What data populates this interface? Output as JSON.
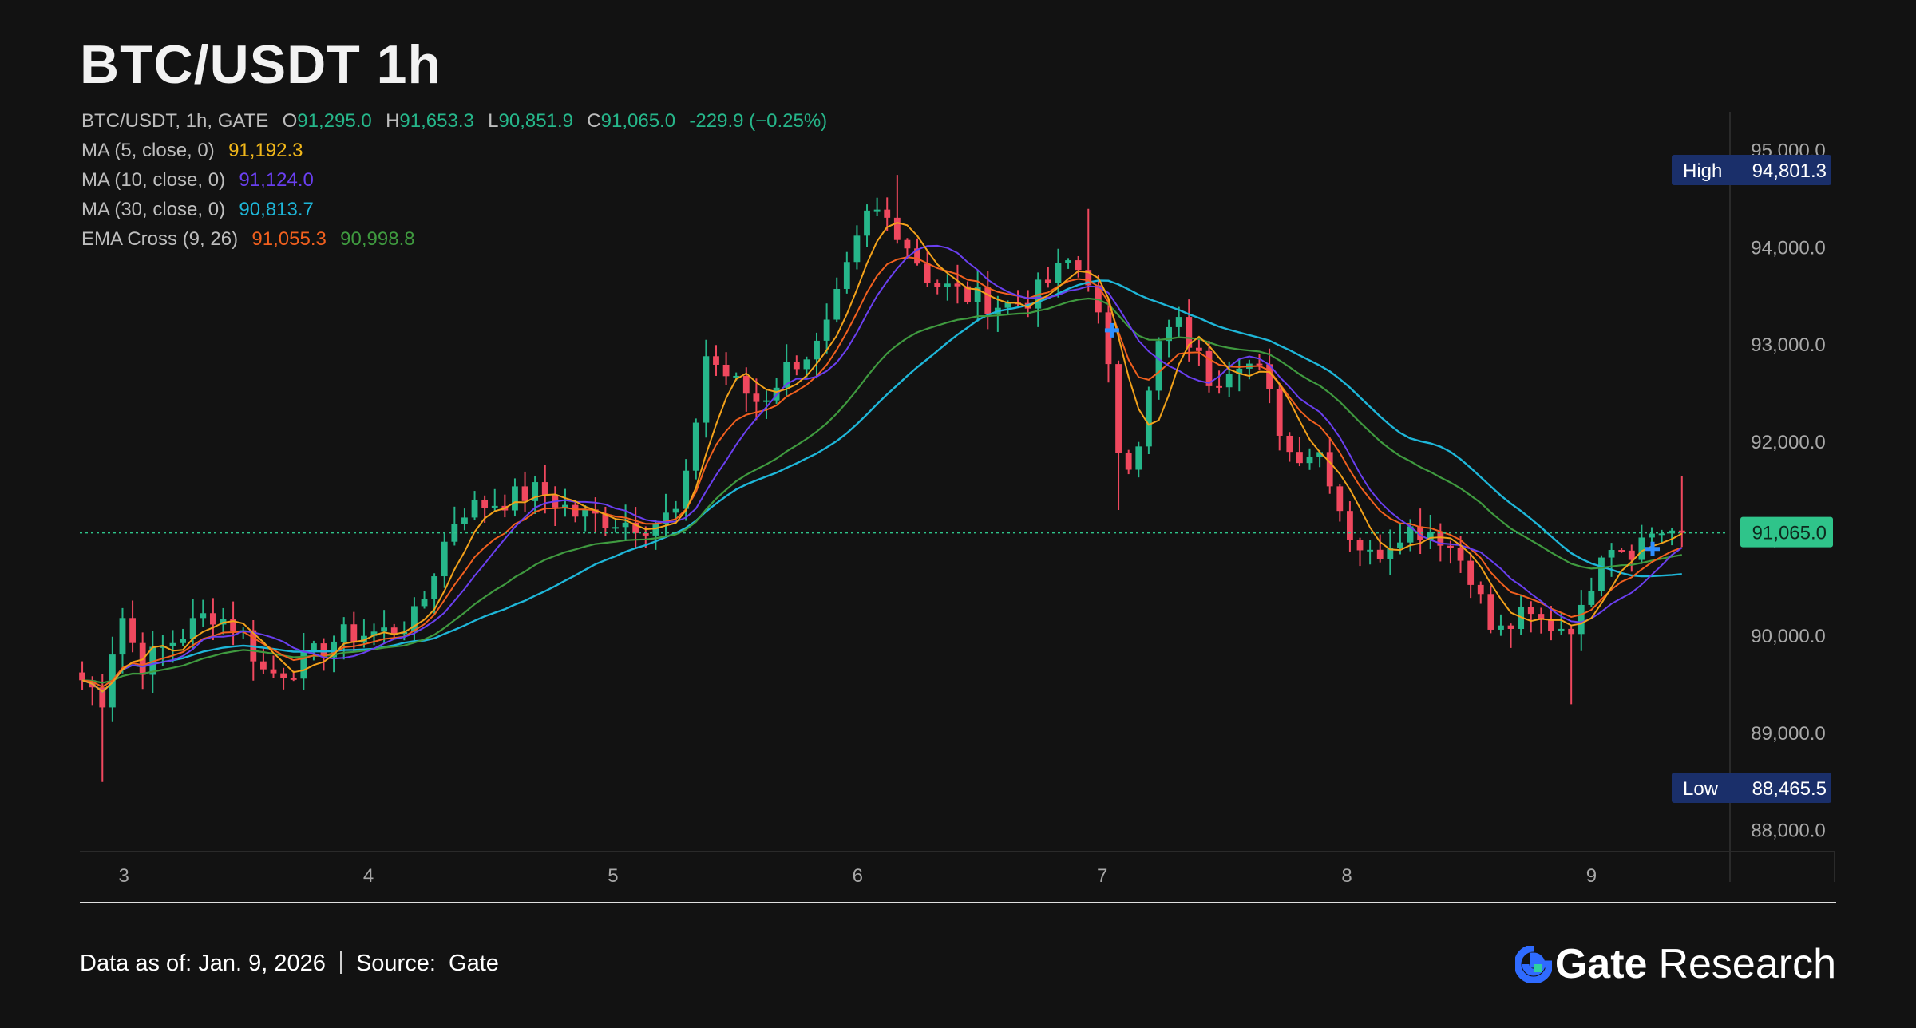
{
  "title": "BTC/USDT 1h",
  "legend": {
    "ohlc_prefix": "BTC/USDT, 1h, GATE",
    "o_label": "O",
    "o_value": "91,295.0",
    "h_label": "H",
    "h_value": "91,653.3",
    "l_label": "L",
    "l_value": "90,851.9",
    "c_label": "C",
    "c_value": "91,065.0",
    "change": "-229.9 (−0.25%)",
    "ma5_label": "MA (5, close, 0)",
    "ma5_value": "91,192.3",
    "ma10_label": "MA (10, close, 0)",
    "ma10_value": "91,124.0",
    "ma30_label": "MA (30, close, 0)",
    "ma30_value": "90,813.7",
    "ema_label": "EMA Cross (9, 26)",
    "ema_fast_value": "91,055.3",
    "ema_slow_value": "90,998.8"
  },
  "badges": {
    "high_label": "High",
    "high_value": "94,801.3",
    "low_label": "Low",
    "low_value": "88,465.5",
    "last_value": "91,065.0"
  },
  "footer": {
    "data_as_of": "Data as of: Jan. 9, 2026",
    "source_label": "Source:",
    "source_value": "Gate",
    "brand_gate": "Gate",
    "brand_research": "Research"
  },
  "colors": {
    "up": "#26b68a",
    "down": "#f0485e",
    "ma5": "#f2a11a",
    "ma10": "#6a3ff0",
    "ma30": "#1eb6d8",
    "ema_fast": "#f2601e",
    "ema_slow": "#3f9a3f",
    "badge_bg": "#1a2f6a",
    "last_badge": "#2fc48a",
    "brand_blue": "#2f6bff"
  },
  "chart_data": {
    "type": "candlestick",
    "x_ticks": [
      "3",
      "4",
      "5",
      "6",
      "7",
      "8",
      "9"
    ],
    "y_ticks": [
      "95,000.0",
      "94,000.0",
      "93,000.0",
      "92,000.0",
      "91,000.0",
      "90,000.0",
      "89,000.0",
      "88,000.0"
    ],
    "y_tick_values": [
      95000,
      94000,
      93000,
      92000,
      91000,
      90000,
      89000,
      88000
    ],
    "ylim": [
      87800,
      95400
    ],
    "x_range": [
      2.82,
      9.56
    ],
    "anchors": [
      [
        2.83,
        89550
      ],
      [
        2.92,
        89350
      ],
      [
        2.98,
        90300
      ],
      [
        3.07,
        89700
      ],
      [
        3.25,
        90050
      ],
      [
        3.35,
        90250
      ],
      [
        3.47,
        90100
      ],
      [
        3.58,
        89600
      ],
      [
        3.72,
        89700
      ],
      [
        3.88,
        90000
      ],
      [
        4.08,
        90050
      ],
      [
        4.2,
        90200
      ],
      [
        4.3,
        90900
      ],
      [
        4.37,
        91300
      ],
      [
        4.55,
        91400
      ],
      [
        4.7,
        91500
      ],
      [
        4.85,
        91250
      ],
      [
        5.0,
        91200
      ],
      [
        5.15,
        91150
      ],
      [
        5.28,
        91300
      ],
      [
        5.38,
        92900
      ],
      [
        5.5,
        92600
      ],
      [
        5.6,
        92400
      ],
      [
        5.72,
        92800
      ],
      [
        5.85,
        93000
      ],
      [
        5.95,
        93700
      ],
      [
        6.05,
        94400
      ],
      [
        6.15,
        94250
      ],
      [
        6.3,
        93650
      ],
      [
        6.45,
        93500
      ],
      [
        6.6,
        93400
      ],
      [
        6.72,
        93500
      ],
      [
        6.86,
        93850
      ],
      [
        6.95,
        93700
      ],
      [
        7.02,
        92800
      ],
      [
        7.08,
        91700
      ],
      [
        7.16,
        92100
      ],
      [
        7.24,
        93100
      ],
      [
        7.32,
        93200
      ],
      [
        7.45,
        92600
      ],
      [
        7.55,
        92900
      ],
      [
        7.65,
        92700
      ],
      [
        7.76,
        91900
      ],
      [
        7.9,
        91900
      ],
      [
        8.0,
        91100
      ],
      [
        8.1,
        90800
      ],
      [
        8.22,
        91100
      ],
      [
        8.36,
        91100
      ],
      [
        8.5,
        90700
      ],
      [
        8.6,
        90000
      ],
      [
        8.72,
        90200
      ],
      [
        8.85,
        90100
      ],
      [
        8.95,
        90150
      ],
      [
        9.05,
        91000
      ],
      [
        9.16,
        90900
      ],
      [
        9.26,
        91100
      ],
      [
        9.37,
        91065
      ]
    ],
    "wick_events": [
      [
        2.92,
        88500
      ],
      [
        6.17,
        94750
      ],
      [
        6.93,
        94400
      ],
      [
        7.08,
        91300
      ],
      [
        8.92,
        89300
      ],
      [
        9.37,
        91650
      ]
    ],
    "ma_smoothing": {
      "ma5": 5,
      "ma10": 10,
      "ma30": 30,
      "ema_fast": 9,
      "ema_slow": 26
    },
    "markers": [
      [
        7.04,
        93150
      ],
      [
        9.25,
        90900
      ]
    ]
  }
}
